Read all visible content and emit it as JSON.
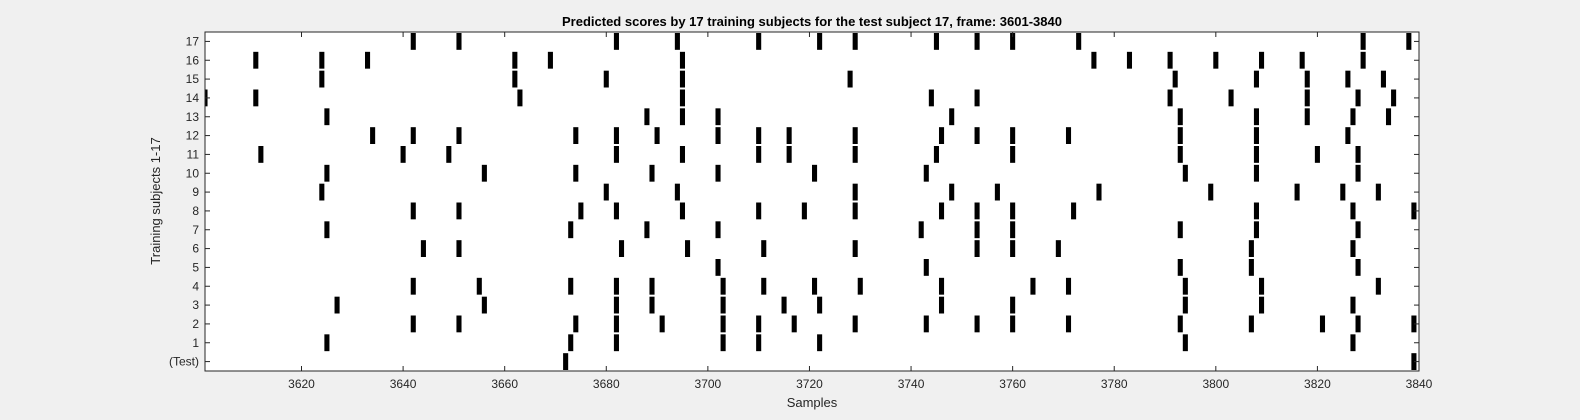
{
  "chart_data": {
    "type": "heatmap",
    "title": "Predicted scores by 17 training subjects for the test subject 17, frame: 3601-3840",
    "xlabel": "Samples",
    "ylabel": "Training subjects 1-17",
    "xlim": [
      3601,
      3840
    ],
    "x_ticks": [
      3620,
      3640,
      3660,
      3680,
      3700,
      3720,
      3740,
      3760,
      3780,
      3800,
      3820,
      3840
    ],
    "y_tick_labels": [
      "(Test)",
      "1",
      "2",
      "3",
      "4",
      "5",
      "6",
      "7",
      "8",
      "9",
      "10",
      "11",
      "12",
      "13",
      "14",
      "15",
      "16",
      "17"
    ],
    "grid": false,
    "colors": {
      "mark": "#000000",
      "background": "#ffffff"
    },
    "rows": [
      {
        "label": "(Test)",
        "samples": [
          3672,
          3839
        ]
      },
      {
        "label": "1",
        "samples": [
          3625,
          3673,
          3682,
          3703,
          3710,
          3722,
          3794,
          3827
        ]
      },
      {
        "label": "2",
        "samples": [
          3642,
          3651,
          3674,
          3682,
          3691,
          3703,
          3710,
          3717,
          3729,
          3743,
          3753,
          3760,
          3771,
          3793,
          3807,
          3821,
          3828,
          3839
        ]
      },
      {
        "label": "3",
        "samples": [
          3627,
          3656,
          3682,
          3689,
          3703,
          3715,
          3722,
          3746,
          3760,
          3794,
          3809,
          3827
        ]
      },
      {
        "label": "4",
        "samples": [
          3642,
          3655,
          3673,
          3682,
          3689,
          3703,
          3711,
          3721,
          3730,
          3746,
          3764,
          3771,
          3794,
          3809,
          3832
        ]
      },
      {
        "label": "5",
        "samples": [
          3702,
          3743,
          3793,
          3807,
          3828
        ]
      },
      {
        "label": "6",
        "samples": [
          3644,
          3651,
          3683,
          3696,
          3711,
          3729,
          3753,
          3760,
          3769,
          3807,
          3827
        ]
      },
      {
        "label": "7",
        "samples": [
          3625,
          3673,
          3688,
          3702,
          3742,
          3753,
          3760,
          3793,
          3808,
          3828
        ]
      },
      {
        "label": "8",
        "samples": [
          3642,
          3651,
          3675,
          3682,
          3695,
          3710,
          3719,
          3729,
          3746,
          3753,
          3760,
          3772,
          3808,
          3827,
          3839
        ]
      },
      {
        "label": "9",
        "samples": [
          3624,
          3680,
          3694,
          3729,
          3748,
          3757,
          3777,
          3799,
          3816,
          3825,
          3832
        ]
      },
      {
        "label": "10",
        "samples": [
          3625,
          3656,
          3674,
          3689,
          3702,
          3721,
          3743,
          3794,
          3808,
          3828
        ]
      },
      {
        "label": "11",
        "samples": [
          3612,
          3640,
          3649,
          3682,
          3695,
          3710,
          3716,
          3729,
          3745,
          3760,
          3793,
          3808,
          3820,
          3828
        ]
      },
      {
        "label": "12",
        "samples": [
          3634,
          3642,
          3651,
          3674,
          3682,
          3690,
          3702,
          3710,
          3716,
          3729,
          3746,
          3753,
          3760,
          3771,
          3793,
          3808,
          3826
        ]
      },
      {
        "label": "13",
        "samples": [
          3625,
          3688,
          3695,
          3702,
          3748,
          3793,
          3808,
          3818,
          3827,
          3834
        ]
      },
      {
        "label": "14",
        "samples": [
          3601,
          3611,
          3663,
          3695,
          3744,
          3753,
          3791,
          3803,
          3818,
          3828,
          3835
        ]
      },
      {
        "label": "15",
        "samples": [
          3624,
          3662,
          3680,
          3695,
          3728,
          3792,
          3808,
          3818,
          3826,
          3833
        ]
      },
      {
        "label": "16",
        "samples": [
          3611,
          3624,
          3633,
          3662,
          3669,
          3695,
          3776,
          3783,
          3791,
          3800,
          3809,
          3817,
          3829
        ]
      },
      {
        "label": "17",
        "samples": [
          3642,
          3651,
          3682,
          3694,
          3710,
          3722,
          3729,
          3745,
          3753,
          3760,
          3773,
          3829,
          3838
        ]
      }
    ]
  }
}
